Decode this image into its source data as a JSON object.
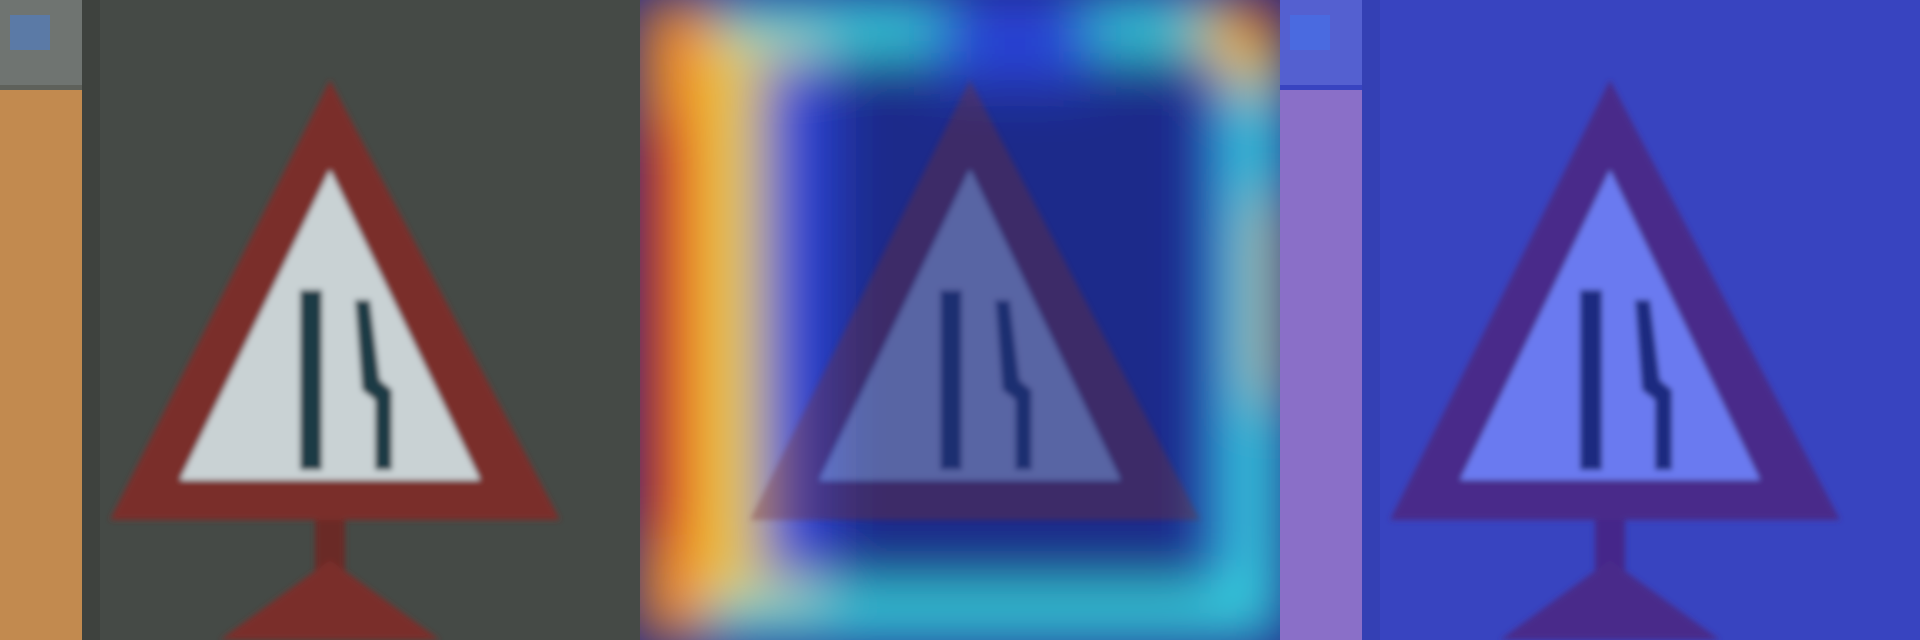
{
  "panels": [
    {
      "id": "original",
      "description_icon": "warning-triangle-road-narrows-sign",
      "colors": {
        "background": "#454a46",
        "left_strip": "#c28a4f",
        "left_strip_edge": "#5e615b",
        "triangle_outline": "#7a2e2c",
        "triangle_fill": "#c9d2d4",
        "symbol": "#1e3a44",
        "top_left_blue": "#5b7aa6"
      }
    },
    {
      "id": "heatmap-overlay",
      "description_icon": "grad-cam-heatmap",
      "colors": {
        "cold": "#1f2a8a",
        "blue": "#2c45d8",
        "cyan": "#37d6e0",
        "yellow": "#e8d23c",
        "orange": "#f08a28",
        "red": "#e0281e"
      }
    },
    {
      "id": "blue-tint-overlay",
      "description_icon": "blue-tinted-image",
      "colors": {
        "background": "#3844c0",
        "left_strip": "#8a6fc8",
        "triangle_outline": "#4a2c8a",
        "triangle_fill": "#6a7af0",
        "symbol": "#1c2a80"
      }
    }
  ]
}
